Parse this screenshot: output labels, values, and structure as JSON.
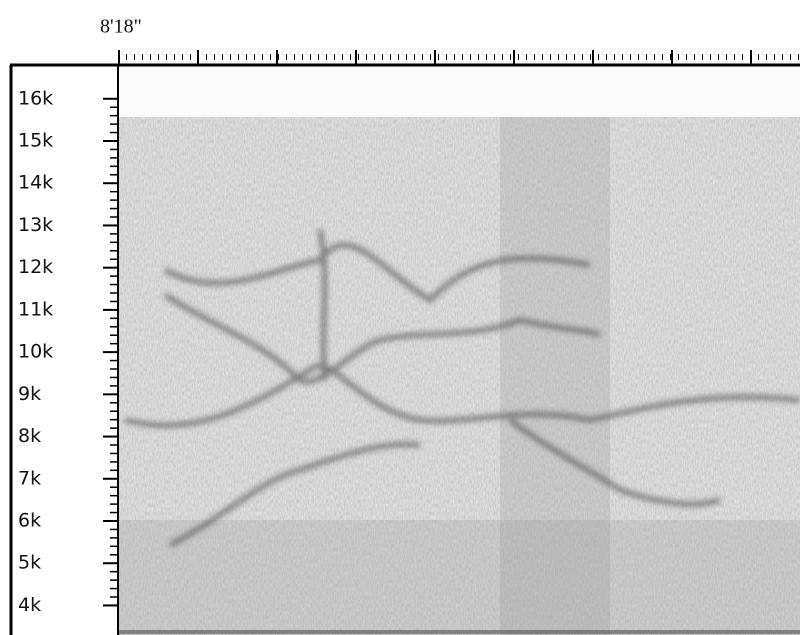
{
  "chart_data": {
    "type": "spectrogram",
    "title": "8'18\"",
    "ylim": [
      3300,
      16800
    ],
    "yticks": [
      {
        "value": 16000,
        "label": "16k"
      },
      {
        "value": 15000,
        "label": "15k"
      },
      {
        "value": 14000,
        "label": "14k"
      },
      {
        "value": 13000,
        "label": "13k"
      },
      {
        "value": 12000,
        "label": "12k"
      },
      {
        "value": 11000,
        "label": "11k"
      },
      {
        "value": 10000,
        "label": "10k"
      },
      {
        "value": 9000,
        "label": "9k"
      },
      {
        "value": 8000,
        "label": "8k"
      },
      {
        "value": 7000,
        "label": "7k"
      },
      {
        "value": 6000,
        "label": "6k"
      },
      {
        "value": 5000,
        "label": "5k"
      },
      {
        "value": 4000,
        "label": "4k"
      }
    ]
  }
}
